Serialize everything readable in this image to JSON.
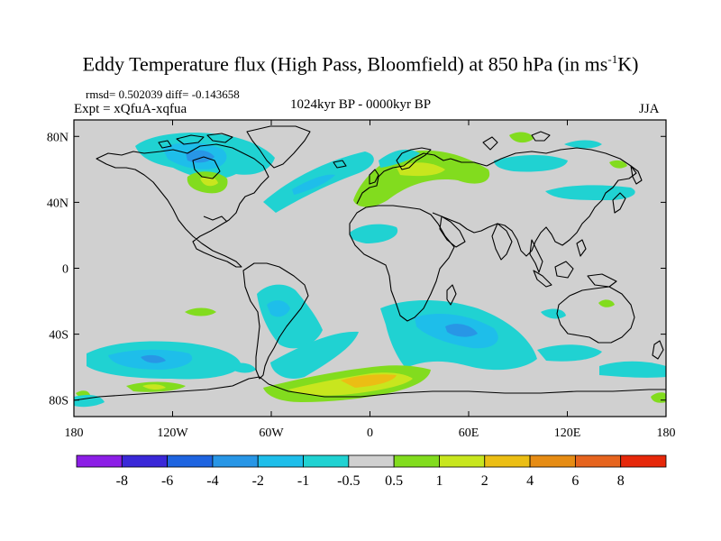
{
  "figure": {
    "title_main": "Eddy Temperature flux (High Pass, Bloomfield) at 850 hPa (in ms",
    "title_sup": "-1",
    "title_end": "K)",
    "stats": "rmsd= 0.502039 diff= -0.143658",
    "expt": "Expt = xQfuA-xqfua",
    "period": "1024kyr BP - 0000kyr BP",
    "season": "JJA"
  },
  "axes": {
    "lat_ticks": [
      "80N",
      "40N",
      "0",
      "40S",
      "80S"
    ],
    "lon_ticks": [
      "180",
      "120W",
      "60W",
      "0",
      "60E",
      "120E",
      "180"
    ]
  },
  "colorbar": {
    "labels": [
      "-8",
      "-6",
      "-4",
      "-2",
      "-1",
      "-0.5",
      "0.5",
      "1",
      "2",
      "4",
      "6",
      "8"
    ],
    "colors": [
      "#8c1ee6",
      "#3a28d8",
      "#1e64e0",
      "#2896e6",
      "#1ebeea",
      "#20d2d2",
      "#d0d0d0",
      "#82dc1e",
      "#c8e61e",
      "#ebbe14",
      "#e68c14",
      "#e6641e",
      "#e6280a"
    ]
  },
  "map": {
    "background_color": "#d0d0d0",
    "lon_range": [
      -180,
      180
    ],
    "lat_range": [
      -90,
      90
    ]
  }
}
